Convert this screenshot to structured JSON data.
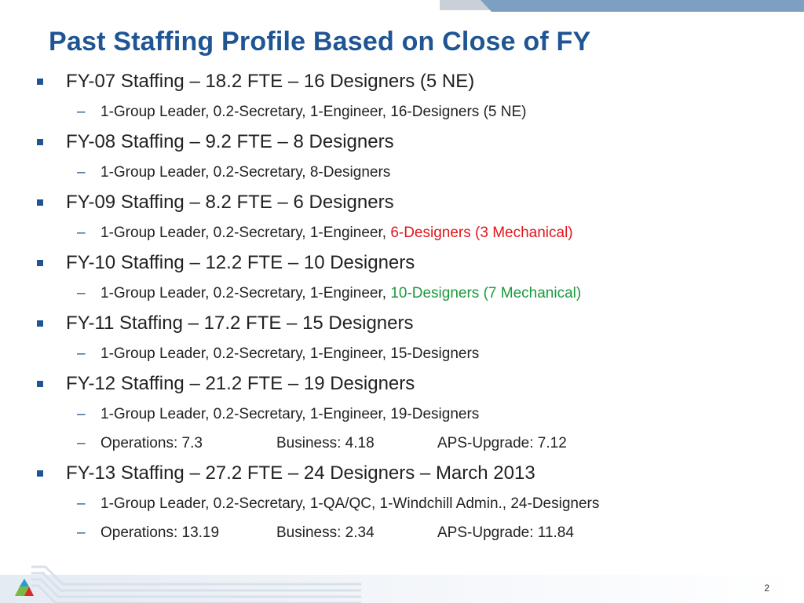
{
  "slide": {
    "title": "Past Staffing Profile Based on Close of FY",
    "page_number": "2"
  },
  "colors": {
    "title_blue": "#1f5594",
    "red_highlight": "#e0161b",
    "green_highlight": "#1a9a3a"
  },
  "items": [
    {
      "text": "FY-07 Staffing – 18.2 FTE – 16 Designers (5 NE)",
      "sub": [
        {
          "text": "1-Group Leader, 0.2-Secretary, 1-Engineer, 16-Designers (5 NE)"
        }
      ]
    },
    {
      "text": "FY-08 Staffing – 9.2 FTE – 8 Designers",
      "sub": [
        {
          "text": "1-Group Leader, 0.2-Secretary, 8-Designers"
        }
      ]
    },
    {
      "text": "FY-09 Staffing – 8.2 FTE – 6 Designers",
      "sub": [
        {
          "text": "1-Group Leader, 0.2-Secretary, 1-Engineer, ",
          "highlight": "6-Designers (3 Mechanical)"
        }
      ]
    },
    {
      "text": "FY-10 Staffing – 12.2 FTE – 10 Designers",
      "sub": [
        {
          "text": "1-Group Leader, 0.2-Secretary, 1-Engineer, ",
          "highlight": "10-Designers (7 Mechanical)"
        }
      ]
    },
    {
      "text": "FY-11 Staffing – 17.2 FTE – 15 Designers",
      "sub": [
        {
          "text": "1-Group Leader, 0.2-Secretary, 1-Engineer, 15-Designers"
        }
      ]
    },
    {
      "text": "FY-12 Staffing – 21.2 FTE – 19 Designers",
      "sub": [
        {
          "text": "1-Group Leader, 0.2-Secretary, 1-Engineer, 19-Designers"
        },
        {
          "cols": [
            "Operations: 7.3",
            "Business: 4.18",
            "APS-Upgrade: 7.12"
          ]
        }
      ]
    },
    {
      "text": "FY-13 Staffing – 27.2 FTE – 24 Designers – March 2013",
      "sub": [
        {
          "text": "1-Group Leader, 0.2-Secretary, 1-QA/QC, 1-Windchill Admin., 24-Designers"
        },
        {
          "cols": [
            "Operations: 13.19",
            "Business: 2.34",
            "APS-Upgrade:  11.84"
          ]
        }
      ]
    }
  ]
}
